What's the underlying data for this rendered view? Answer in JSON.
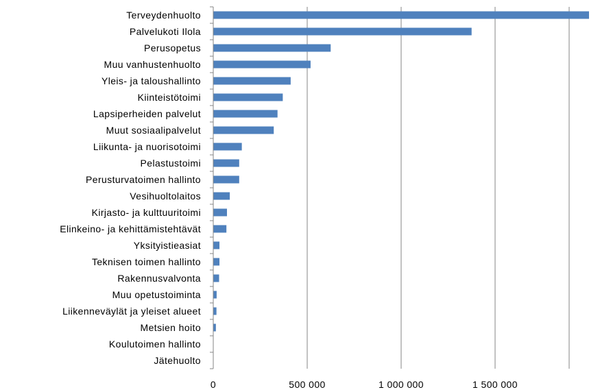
{
  "chart_data": {
    "type": "bar",
    "orientation": "horizontal",
    "title": "",
    "xlabel": "",
    "ylabel": "",
    "categories": [
      "Terveydenhuolto",
      "Palvelukoti Ilola",
      "Perusopetus",
      "Muu vanhustenhuolto",
      "Yleis- ja taloushallinto",
      "Kiinteistötoimi",
      "Lapsiperheiden palvelut",
      "Muut sosiaalipalvelut",
      "Liikunta- ja nuorisotoimi",
      "Pelastustoimi",
      "Perusturvatoimen hallinto",
      "Vesihuoltolaitos",
      "Kirjasto- ja kulttuuritoimi",
      "Elinkeino- ja kehittämistehtävät",
      "Yksityistieasiat",
      "Teknisen toimen hallinto",
      "Rakennusvalvonta",
      "Muu opetustoiminta",
      "Liikenneväylät ja yleiset alueet",
      "Metsien hoito",
      "Koulutoimen hallinto",
      "Jätehuolto"
    ],
    "values": [
      2000000,
      1375000,
      625000,
      518000,
      412000,
      370000,
      342000,
      322000,
      152000,
      138000,
      138000,
      88000,
      73000,
      70000,
      33000,
      33000,
      31000,
      18000,
      17000,
      14000,
      0,
      0
    ],
    "xlim": [
      0,
      1900000
    ],
    "xticks": [
      0,
      500000,
      1000000,
      1500000
    ],
    "xtick_labels": [
      "0",
      "500 000",
      "1 000 000",
      "1 500 000"
    ],
    "grid": "vertical",
    "legend": "none",
    "bar_color": "#4F81BD",
    "grid_color": "#868686"
  }
}
